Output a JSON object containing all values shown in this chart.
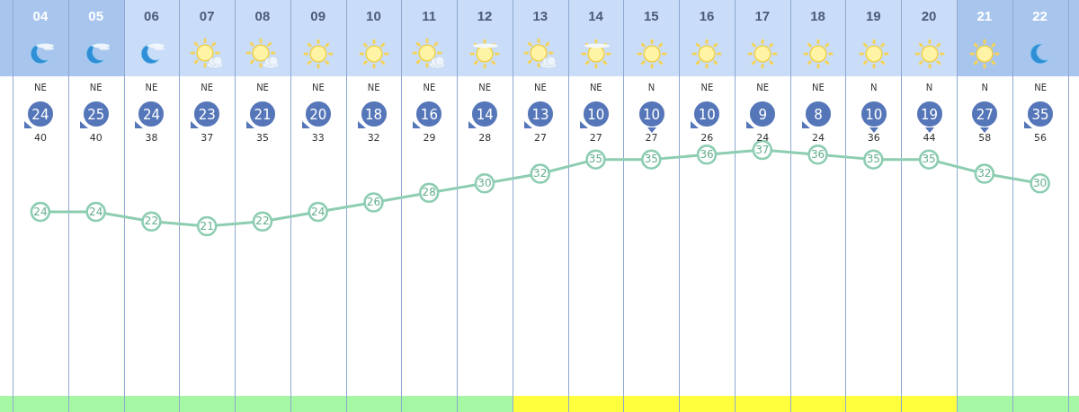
{
  "chart_data": {
    "type": "line",
    "categories": [
      "04",
      "05",
      "06",
      "07",
      "08",
      "09",
      "10",
      "11",
      "12",
      "13",
      "14",
      "15",
      "16",
      "17",
      "18",
      "19",
      "20",
      "21",
      "22"
    ],
    "series": [
      {
        "color": "#8dcdb1",
        "values": [
          24,
          24,
          22,
          21,
          22,
          24,
          26,
          28,
          30,
          32,
          35,
          35,
          36,
          37,
          36,
          35,
          35,
          32,
          30
        ]
      }
    ],
    "data_labels": true,
    "marker": "circle",
    "grid": "x",
    "tick_labels": "x",
    "annotations": [
      "NE",
      "NE",
      "NE",
      "NE",
      "NE",
      "NE",
      "NE",
      "NE",
      "NE",
      "NE",
      "NE",
      "N",
      "NE",
      "NE",
      "NE",
      "N",
      "N",
      "N",
      "NE",
      "24",
      "25",
      "24",
      "23",
      "21",
      "20",
      "18",
      "16",
      "14",
      "13",
      "10",
      "10",
      "10",
      "9",
      "8",
      "10",
      "19",
      "27",
      "35",
      "40",
      "40",
      "38",
      "37",
      "35",
      "33",
      "32",
      "29",
      "28",
      "27",
      "27",
      "27",
      "26",
      "24",
      "24",
      "36",
      "44",
      "58",
      "56"
    ]
  }
}
